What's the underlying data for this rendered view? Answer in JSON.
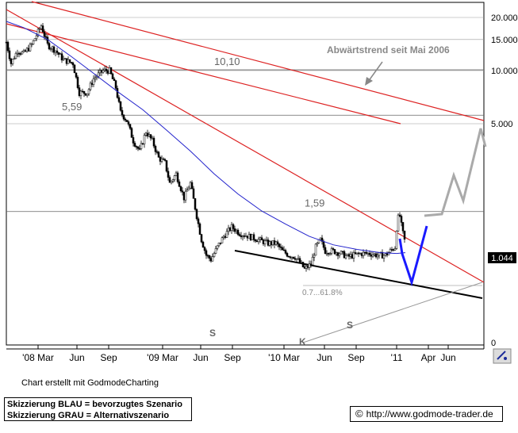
{
  "chart_data": {
    "type": "candlestick",
    "y_scale": "log",
    "ylim": [
      0.7,
      22
    ],
    "y_ticks": [
      {
        "label": "20.000",
        "value": 20
      },
      {
        "label": "15.000",
        "value": 15
      },
      {
        "label": "10.000",
        "value": 10
      },
      {
        "label": "5.000",
        "value": 5
      },
      {
        "label": "0",
        "value": 0.75
      }
    ],
    "x_ticks": [
      "'08 Mar",
      "Jun",
      "Sep",
      "'09 Mar",
      "Jun",
      "Sep",
      "'10 Mar",
      "Jun",
      "Sep",
      "'11",
      "Apr",
      "Jun"
    ],
    "last_price": "1.044",
    "horizontal_levels": [
      {
        "label": "10,10",
        "value": 10.1
      },
      {
        "label": "5,59",
        "value": 5.59
      },
      {
        "label": "1,59",
        "value": 1.59
      }
    ],
    "annotations": {
      "trend_label": "Abwärtstrend seit Mai 2006",
      "fib_label": "0.7...61.8%",
      "pattern_s1": "S",
      "pattern_s2": "S",
      "pattern_k": "K"
    },
    "moving_average": {
      "name": "",
      "color": "#2222cc"
    },
    "colors": {
      "trend_lines": "#dd2222",
      "scenario_blue": "#1a1aff",
      "scenario_grey": "#aaaaaa"
    }
  },
  "footer": {
    "credit": "Chart erstellt mit GodmodeCharting",
    "legend_line1": "Skizzierung BLAU = bevorzugtes Szenario",
    "legend_line2": "Skizzierung GRAU = Alternativszenario",
    "copyright_symbol": "©",
    "url": "http://www.godmode-trader.de"
  }
}
